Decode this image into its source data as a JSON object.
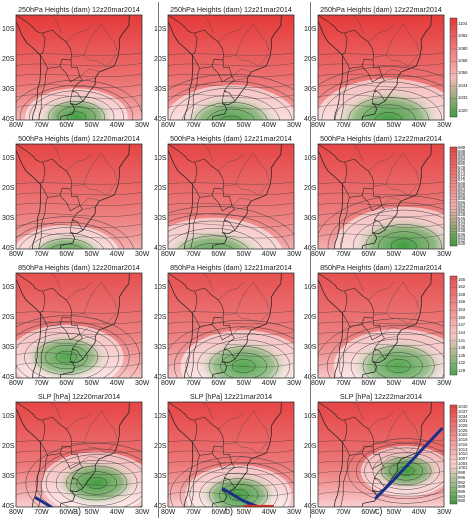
{
  "figure": {
    "column_labels": [
      "a)",
      "b)",
      "c)"
    ],
    "rows": [
      {
        "variable": "250hPa Heights (dam)",
        "colorbar_ticks": [
          "1104",
          "1092",
          "1080",
          "1068",
          "1056",
          "1044",
          "1032",
          "1020"
        ],
        "colors": {
          "high": "#e53a3a",
          "mid": "#f6b8b8",
          "low": "#3f9f3f"
        }
      },
      {
        "variable": "500hPa Heights (dam)",
        "colorbar_ticks": [
          "589",
          "588",
          "586",
          "584",
          "582",
          "580",
          "578",
          "576",
          "574",
          "572",
          "570",
          "568",
          "566",
          "564",
          "562",
          "560",
          "558",
          "556",
          "554",
          "552",
          "550",
          "548",
          "546",
          "544",
          "542",
          "540",
          "538",
          "536",
          "534",
          "532",
          "530"
        ],
        "colors": {
          "high": "#e54545",
          "mid": "#f3b0b0",
          "low": "#3f9f3f"
        }
      },
      {
        "variable": "850hPa Heights (dam)",
        "colorbar_ticks": [
          "165",
          "162",
          "159",
          "156",
          "153",
          "150",
          "147",
          "144",
          "141",
          "138",
          "135",
          "132",
          "129"
        ],
        "colors": {
          "high": "#e65050",
          "mid": "#f7c6c6",
          "low": "#4fa84f"
        }
      },
      {
        "variable": "SLP [hPa]",
        "colorbar_ticks": [
          "1040",
          "1037",
          "1034",
          "1031",
          "1028",
          "1025",
          "1022",
          "1019",
          "1016",
          "1013",
          "1010",
          "1007",
          "1004",
          "1001",
          "998",
          "995",
          "992",
          "989",
          "986",
          "983",
          "980"
        ],
        "colors": {
          "high": "#e64545",
          "mid": "#f9d0d0",
          "low": "#3f9f3f"
        }
      }
    ],
    "dates": [
      "12z20mar2014",
      "12z21mar2014",
      "12z22mar2014"
    ],
    "lon_ticks": [
      "80W",
      "70W",
      "60W",
      "50W",
      "40W",
      "30W"
    ],
    "lat_ticks": [
      "10S",
      "20S",
      "30S",
      "40S"
    ],
    "map_data": [
      {
        "row": 0,
        "col": 0,
        "lows": [
          {
            "lon": -56,
            "lat": -39,
            "strength": 0.45
          }
        ]
      },
      {
        "row": 0,
        "col": 1,
        "lows": [
          {
            "lon": -55,
            "lat": -41,
            "strength": 0.85
          }
        ]
      },
      {
        "row": 0,
        "col": 2,
        "lows": [
          {
            "lon": -52,
            "lat": -40,
            "strength": 1.0
          }
        ]
      },
      {
        "row": 1,
        "col": 0,
        "lows": [
          {
            "lon": -60,
            "lat": -42,
            "strength": 0.5
          }
        ]
      },
      {
        "row": 1,
        "col": 1,
        "lows": [
          {
            "lon": -62,
            "lat": -43,
            "strength": 0.95
          }
        ]
      },
      {
        "row": 1,
        "col": 2,
        "lows": [
          {
            "lon": -46,
            "lat": -39,
            "strength": 0.9
          }
        ]
      },
      {
        "row": 2,
        "col": 0,
        "lows": [
          {
            "lon": -60,
            "lat": -33,
            "strength": 0.6
          }
        ]
      },
      {
        "row": 2,
        "col": 1,
        "lows": [
          {
            "lon": -50,
            "lat": -36,
            "strength": 0.75
          }
        ]
      },
      {
        "row": 2,
        "col": 2,
        "lows": [
          {
            "lon": -48,
            "lat": -36,
            "strength": 0.8
          }
        ]
      },
      {
        "row": 3,
        "col": 0,
        "lows": [
          {
            "lon": -48,
            "lat": -32,
            "strength": 0.55
          }
        ]
      },
      {
        "row": 3,
        "col": 1,
        "lows": [
          {
            "lon": -52,
            "lat": -36,
            "strength": 0.5
          }
        ]
      },
      {
        "row": 3,
        "col": 2,
        "lows": [
          {
            "lon": -45,
            "lat": -28,
            "strength": 0.3
          }
        ]
      }
    ],
    "fronts": [
      {
        "col": 0,
        "points": [
          [
            -72,
            -37
          ],
          [
            -66,
            -40
          ]
        ]
      },
      {
        "col": 1,
        "points": [
          [
            -58,
            -34
          ],
          [
            -50,
            -38
          ],
          [
            -44,
            -40
          ]
        ],
        "band_lon": [
          -50,
          -38
        ]
      },
      {
        "col": 2,
        "points": [
          [
            -57,
            -37
          ],
          [
            -50,
            -31
          ],
          [
            -40,
            -22
          ],
          [
            -31,
            -14
          ]
        ]
      }
    ]
  }
}
